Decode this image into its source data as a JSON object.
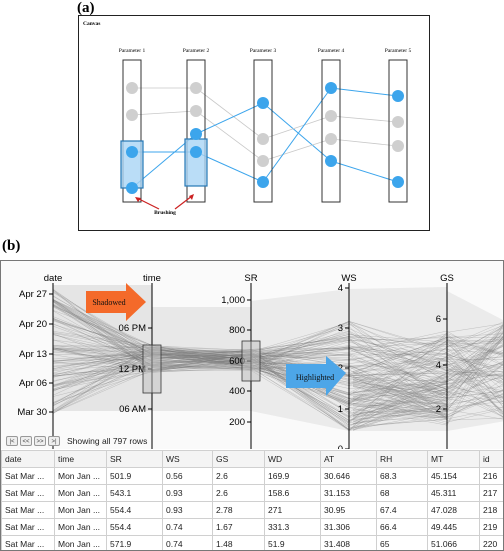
{
  "figure": {
    "label_a": "(a)",
    "label_b": "(b)"
  },
  "panel_a": {
    "canvas_title": "Canvas",
    "parameters": [
      "Parameter 1",
      "Parameter 2",
      "Parameter 3",
      "Parameter 4",
      "Parameter 5"
    ],
    "brushing_label": "Brushing",
    "colors": {
      "active": "#3ca5ec",
      "inactive": "#cfcfcf",
      "axis": "#333333",
      "brush_fill": "#a9d5f5",
      "arrow": "#cc2222"
    }
  },
  "panel_b": {
    "axes": [
      {
        "name": "date",
        "ticks": [
          "Apr 27",
          "Apr 20",
          "Apr 13",
          "Apr 06",
          "Mar 30"
        ]
      },
      {
        "name": "time",
        "ticks": [
          "06 PM",
          "12 PM",
          "06 AM"
        ]
      },
      {
        "name": "SR",
        "ticks": [
          "1,000",
          "800",
          "600",
          "400",
          "200"
        ]
      },
      {
        "name": "WS",
        "ticks": [
          "4",
          "3",
          "2",
          "1",
          "0"
        ]
      },
      {
        "name": "GS",
        "ticks": [
          "6",
          "4",
          "2"
        ]
      }
    ],
    "shadowed_label": "Shadowed",
    "highlighted_label": "Highlighted",
    "colors": {
      "shadowed_arrow": "#f46a2a",
      "highlighted_arrow": "#4da6e8",
      "line": "#7a7a7a",
      "shadow": "#dcdcdc"
    },
    "pager": {
      "first": "|<",
      "prev": "<<",
      "next": ">>",
      "last": ">|"
    },
    "status": "Showing all 797 rows",
    "table": {
      "columns": [
        "date",
        "time",
        "SR",
        "WS",
        "GS",
        "WD",
        "AT",
        "RH",
        "MT",
        "id"
      ],
      "rows": [
        [
          "Sat Mar ...",
          "Mon Jan ...",
          "501.9",
          "0.56",
          "2.6",
          "169.9",
          "30.646",
          "68.3",
          "45.154",
          "216"
        ],
        [
          "Sat Mar ...",
          "Mon Jan ...",
          "543.1",
          "0.93",
          "2.6",
          "158.6",
          "31.153",
          "68",
          "45.311",
          "217"
        ],
        [
          "Sat Mar ...",
          "Mon Jan ...",
          "554.4",
          "0.93",
          "2.78",
          "271",
          "30.95",
          "67.4",
          "47.028",
          "218"
        ],
        [
          "Sat Mar ...",
          "Mon Jan ...",
          "554.4",
          "0.74",
          "1.67",
          "331.3",
          "31.306",
          "66.4",
          "49.445",
          "219"
        ],
        [
          "Sat Mar ...",
          "Mon Jan ...",
          "571.9",
          "0.74",
          "1.48",
          "51.9",
          "31.408",
          "65",
          "51.066",
          "220"
        ]
      ]
    }
  }
}
